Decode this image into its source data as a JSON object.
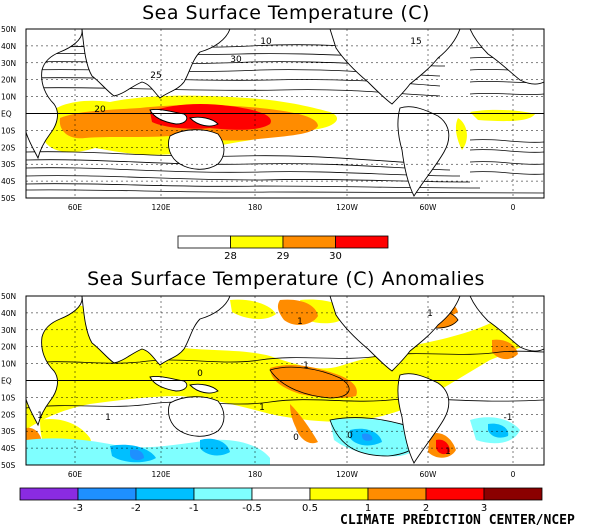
{
  "credit": "CLIMATE PREDICTION CENTER/NCEP",
  "colors": {
    "sst": [
      "#ffffff",
      "#ffff00",
      "#ff8c00",
      "#ff0000"
    ],
    "anom": [
      "#8a2be2",
      "#1e90ff",
      "#00bfff",
      "#7fffff",
      "#ffffff",
      "#ffff00",
      "#ff8c00",
      "#ff0000",
      "#8b0000"
    ],
    "land": "#ffffff",
    "contour": "#000000"
  },
  "chart_data": [
    {
      "type": "heatmap",
      "title": "Sea Surface Temperature (C)",
      "unit": "C",
      "lat_labels": [
        "50N",
        "40N",
        "30N",
        "20N",
        "10N",
        "EQ",
        "10S",
        "20S",
        "30S",
        "40S",
        "50S"
      ],
      "lon_labels": [
        "60E",
        "120E",
        "180",
        "120W",
        "60W",
        "0"
      ],
      "colorbar": {
        "boundaries": [
          "28",
          "29",
          "30"
        ]
      },
      "contour_labels": [
        "10",
        "15",
        "20",
        "25",
        "30"
      ],
      "regions": [
        {
          "level": 1,
          "lon": [
            40,
            280
          ],
          "lat": [
            -15,
            12
          ]
        },
        {
          "level": 2,
          "lon": [
            60,
            230
          ],
          "lat": [
            -10,
            5
          ]
        },
        {
          "level": 3,
          "lon": [
            150,
            200
          ],
          "lat": [
            -8,
            3
          ]
        }
      ]
    },
    {
      "type": "heatmap",
      "title": "Sea Surface Temperature (C) Anomalies",
      "unit": "C",
      "lat_labels": [
        "50N",
        "40N",
        "30N",
        "20N",
        "10N",
        "EQ",
        "10S",
        "20S",
        "30S",
        "40S",
        "50S"
      ],
      "lon_labels": [
        "60E",
        "120E",
        "180",
        "120W",
        "60W",
        "0"
      ],
      "colorbar": {
        "boundaries": [
          "-3",
          "-2",
          "-1",
          "-0.5",
          "0.5",
          "1",
          "2",
          "3"
        ]
      },
      "contour_labels": [
        "1",
        "0",
        "1",
        "1",
        "0",
        "1",
        "1",
        "-1",
        "0",
        "1",
        "1"
      ]
    }
  ]
}
